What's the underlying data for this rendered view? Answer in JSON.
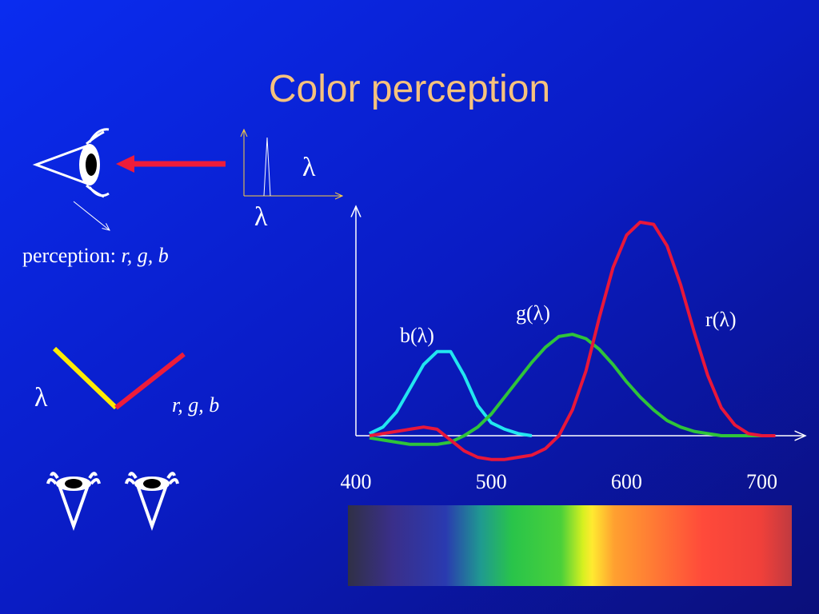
{
  "slide": {
    "title": "Color perception",
    "input_symbol": "λ",
    "input_axis_symbol": "λ",
    "perception_label": "perception:",
    "perception_vars": "r, g, b",
    "map_input": "λ",
    "map_output": "r, g, b"
  },
  "chart_data": {
    "type": "line",
    "x": [
      410,
      420,
      430,
      440,
      450,
      460,
      470,
      480,
      490,
      500,
      510,
      520,
      530,
      540,
      550,
      560,
      570,
      580,
      590,
      600,
      610,
      620,
      630,
      640,
      650,
      660,
      670,
      680,
      690,
      700,
      710
    ],
    "xlim": [
      400,
      731
    ],
    "xticks": [
      400,
      500,
      600,
      700
    ],
    "ylim": [
      -0.2,
      1.06
    ],
    "series": [
      {
        "name": "b(λ)",
        "color": "#22e6f0",
        "values": [
          0.01,
          0.04,
          0.11,
          0.22,
          0.33,
          0.39,
          0.39,
          0.28,
          0.14,
          0.06,
          0.03,
          0.01,
          0.0,
          null,
          null,
          null,
          null,
          null,
          null,
          null,
          null,
          null,
          null,
          null,
          null,
          null,
          null,
          null,
          null,
          null,
          null
        ]
      },
      {
        "name": "g(λ)",
        "color": "#2fc43a",
        "values": [
          -0.01,
          -0.02,
          -0.03,
          -0.04,
          -0.04,
          -0.04,
          -0.03,
          0.0,
          0.04,
          0.1,
          0.18,
          0.26,
          0.34,
          0.41,
          0.46,
          0.47,
          0.45,
          0.4,
          0.33,
          0.25,
          0.18,
          0.12,
          0.07,
          0.04,
          0.02,
          0.01,
          0.0,
          0.0,
          0.0,
          0.0,
          null
        ]
      },
      {
        "name": "r(λ)",
        "color": "#e8173a",
        "values": [
          0.0,
          0.01,
          0.02,
          0.03,
          0.04,
          0.03,
          -0.02,
          -0.07,
          -0.1,
          -0.11,
          -0.11,
          -0.1,
          -0.09,
          -0.06,
          0.0,
          0.12,
          0.3,
          0.55,
          0.78,
          0.93,
          0.99,
          0.98,
          0.88,
          0.7,
          0.48,
          0.28,
          0.13,
          0.05,
          0.01,
          0.0,
          0.0
        ]
      }
    ]
  }
}
